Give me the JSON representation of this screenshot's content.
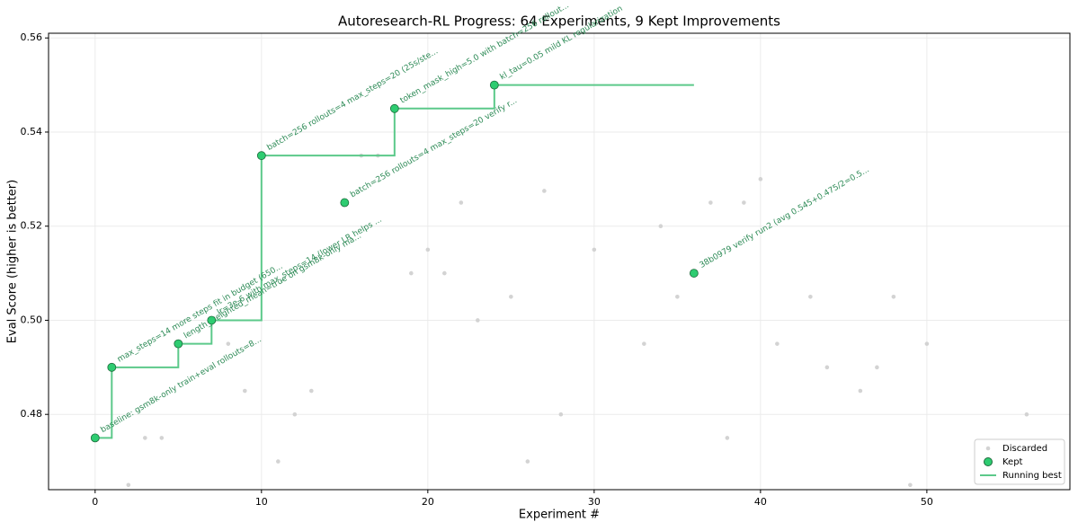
{
  "chart_data": {
    "type": "scatter",
    "title": "Autoresearch-RL Progress: 64 Experiments, 9 Kept Improvements",
    "xlabel": "Experiment #",
    "ylabel": "Eval Score (higher is better)",
    "xlim": [
      -2.8,
      58.6
    ],
    "ylim": [
      0.464,
      0.561
    ],
    "xticks": [
      0,
      10,
      20,
      30,
      40,
      50
    ],
    "yticks": [
      0.48,
      {
        "value": 0.5,
        "label": "0.50"
      },
      0.52,
      0.54,
      0.56
    ],
    "grid": true,
    "legend": "lower right",
    "series": [
      {
        "name": "Discarded",
        "type": "scatter",
        "color": "#d3d3d3",
        "x": [
          2,
          3,
          4,
          8,
          9,
          11,
          12,
          13,
          16,
          17,
          19,
          20,
          21,
          22,
          23,
          25,
          26,
          27,
          28,
          30,
          33,
          34,
          35,
          37,
          38,
          39,
          40,
          41,
          43,
          44,
          46,
          47,
          48,
          49,
          50,
          56
        ],
        "values": [
          0.465,
          0.475,
          0.475,
          0.495,
          0.485,
          0.47,
          0.48,
          0.485,
          0.535,
          0.535,
          0.51,
          0.515,
          0.51,
          0.525,
          0.5,
          0.505,
          0.47,
          0.5275,
          0.48,
          0.515,
          0.495,
          0.52,
          0.505,
          0.525,
          0.475,
          0.525,
          0.53,
          0.495,
          0.505,
          0.49,
          0.485,
          0.49,
          0.505,
          0.465,
          0.495,
          0.48
        ]
      },
      {
        "name": "Kept",
        "type": "scatter",
        "color": "#2ecc71",
        "x": [
          0,
          1,
          5,
          7,
          10,
          15,
          18,
          24,
          36
        ],
        "values": [
          0.475,
          0.49,
          0.495,
          0.5,
          0.535,
          0.525,
          0.545,
          0.55,
          0.51
        ],
        "labels": [
          "baseline: gsm8k-only train+eval rollouts=8...",
          "max_steps=14 more steps fit in budget (650...",
          "length_weighted_mean=true on gsm8k-only ma...",
          "lr=3e-6 with max_steps=14 (lower LR helps ...",
          "batch=256 rollouts=4 max_steps=20 (25s/ste...",
          "batch=256 rollouts=4 max_steps=20 verify r...",
          "token_mask_high=5.0 with batch=256 rollout...",
          "kl_tau=0.05 mild KL regularization",
          "38b0979 verify run2 (avg 0.545+0.475/2=0.5..."
        ]
      },
      {
        "name": "Running best",
        "type": "step",
        "color": "#5cc98a",
        "x": [
          0,
          1,
          5,
          7,
          10,
          18,
          24,
          36
        ],
        "values": [
          0.475,
          0.49,
          0.495,
          0.5,
          0.535,
          0.545,
          0.55,
          0.55
        ]
      }
    ]
  }
}
